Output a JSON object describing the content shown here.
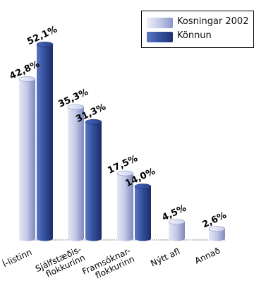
{
  "chart_data": {
    "type": "bar",
    "categories": [
      "Í-listinn",
      "Sjálfstæðis-\nflokkurinn",
      "Framsóknar-\nflokkurinn",
      "Nýtt afl",
      "Annað"
    ],
    "series": [
      {
        "name": "Kosningar 2002",
        "values": [
          42.8,
          35.3,
          17.5,
          4.5,
          2.6
        ],
        "labels": [
          "42,8%",
          "35,3%",
          "17,5%",
          "4,5%",
          "2,6%"
        ]
      },
      {
        "name": "Könnun",
        "values": [
          52.1,
          31.3,
          14.0,
          null,
          null
        ],
        "labels": [
          "52,1%",
          "31,3%",
          "14,0%",
          "",
          ""
        ]
      }
    ],
    "legend_position": "top-right",
    "colors": {
      "Kosningar 2002": "#c6cbe6",
      "Könnun": "#3a539c"
    },
    "grid": false
  }
}
